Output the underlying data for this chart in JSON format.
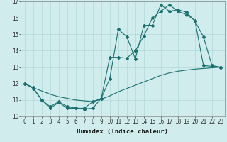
{
  "title": "",
  "xlabel": "Humidex (Indice chaleur)",
  "xlim": [
    -0.5,
    23.5
  ],
  "ylim": [
    10,
    17
  ],
  "bg_color": "#d1ecec",
  "line_color": "#1a7070",
  "grid_color": "#b0d8d8",
  "line1_x": [
    0,
    1,
    2,
    3,
    4,
    5,
    6,
    7,
    8,
    9,
    10,
    11,
    12,
    13,
    14,
    15,
    16,
    17,
    18,
    19,
    20,
    21,
    22,
    23
  ],
  "line1_y": [
    12.0,
    11.7,
    11.0,
    10.6,
    10.9,
    10.6,
    10.5,
    10.45,
    10.5,
    11.1,
    12.3,
    15.3,
    14.85,
    13.5,
    15.55,
    15.55,
    16.8,
    16.4,
    16.5,
    16.35,
    15.8,
    14.85,
    13.1,
    13.0
  ],
  "line2_x": [
    0,
    1,
    2,
    3,
    4,
    5,
    6,
    7,
    8,
    9,
    10,
    11,
    12,
    13,
    14,
    15,
    16,
    17,
    18,
    19,
    20,
    21,
    22,
    23
  ],
  "line2_y": [
    12.0,
    11.75,
    11.0,
    10.5,
    10.85,
    10.5,
    10.5,
    10.5,
    10.9,
    11.1,
    13.6,
    13.6,
    13.55,
    14.0,
    14.9,
    16.0,
    16.4,
    16.8,
    16.4,
    16.2,
    15.85,
    13.1,
    13.05,
    13.0
  ],
  "line3_x": [
    0,
    1,
    2,
    3,
    4,
    5,
    6,
    7,
    8,
    9,
    10,
    11,
    12,
    13,
    14,
    15,
    16,
    17,
    18,
    19,
    20,
    21,
    22,
    23
  ],
  "line3_y": [
    12.0,
    11.75,
    11.55,
    11.35,
    11.2,
    11.1,
    11.0,
    10.95,
    10.9,
    11.05,
    11.25,
    11.5,
    11.7,
    11.9,
    12.1,
    12.3,
    12.5,
    12.65,
    12.75,
    12.82,
    12.88,
    12.92,
    12.96,
    13.0
  ],
  "yticks": [
    10,
    11,
    12,
    13,
    14,
    15,
    16,
    17
  ],
  "xticks": [
    0,
    1,
    2,
    3,
    4,
    5,
    6,
    7,
    8,
    9,
    10,
    11,
    12,
    13,
    14,
    15,
    16,
    17,
    18,
    19,
    20,
    21,
    22,
    23
  ],
  "marker": "D",
  "markersize": 2.0,
  "linewidth": 0.8,
  "xlabel_fontsize": 6.5,
  "tick_fontsize": 5.5
}
